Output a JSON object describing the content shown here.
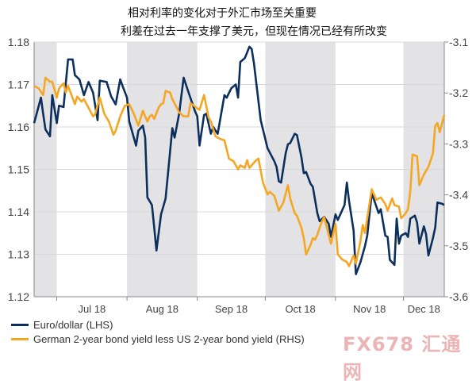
{
  "chart_data": {
    "type": "line",
    "title_lines": [
      "相对利率的变化对于外汇市场至关重要",
      "利差在过去一年支撑了美元，但现在情况已经有所改变"
    ],
    "x_range": [
      "2018-06-21",
      "2018-12-19"
    ],
    "x_ticks": [
      "Jul 18",
      "Aug 18",
      "Sep 18",
      "Oct 18",
      "Nov 18",
      "Dec 18"
    ],
    "shaded_months": [
      "Jun",
      "Aug",
      "Oct",
      "Dec"
    ],
    "y_left": {
      "range": [
        1.12,
        1.18
      ],
      "ticks": [
        "1.12",
        "1.13",
        "1.14",
        "1.15",
        "1.16",
        "1.17",
        "1.18"
      ]
    },
    "y_right": {
      "range": [
        -3.6,
        -3.1
      ],
      "ticks": [
        "-3.6",
        "-3.5",
        "-3.4",
        "-3.3",
        "-3.2",
        "-3.1"
      ]
    },
    "grid": true,
    "legend_position": "bottom-left",
    "series": [
      {
        "name": "Euro/dollar (LHS)",
        "axis": "left",
        "color": "#0d2f5e",
        "points": [
          [
            "2018-06-21",
            1.1609
          ],
          [
            "2018-06-24",
            1.1669
          ],
          [
            "2018-06-25",
            1.1631
          ],
          [
            "2018-06-26",
            1.1594
          ],
          [
            "2018-06-28",
            1.1578
          ],
          [
            "2018-06-29",
            1.1675
          ],
          [
            "2018-07-01",
            1.1609
          ],
          [
            "2018-07-02",
            1.165
          ],
          [
            "2018-07-04",
            1.1647
          ],
          [
            "2018-07-06",
            1.1759
          ],
          [
            "2018-07-08",
            1.1759
          ],
          [
            "2018-07-09",
            1.1722
          ],
          [
            "2018-07-11",
            1.1712
          ],
          [
            "2018-07-13",
            1.1675
          ],
          [
            "2018-07-15",
            1.1706
          ],
          [
            "2018-07-17",
            1.1681
          ],
          [
            "2018-07-19",
            1.1616
          ],
          [
            "2018-07-20",
            1.1709
          ],
          [
            "2018-07-23",
            1.1706
          ],
          [
            "2018-07-25",
            1.1672
          ],
          [
            "2018-07-27",
            1.1653
          ],
          [
            "2018-07-29",
            1.1712
          ],
          [
            "2018-07-30",
            1.1697
          ],
          [
            "2018-08-01",
            1.1669
          ],
          [
            "2018-08-02",
            1.1612
          ],
          [
            "2018-08-03",
            1.1594
          ],
          [
            "2018-08-05",
            1.1556
          ],
          [
            "2018-08-06",
            1.1591
          ],
          [
            "2018-08-08",
            1.1603
          ],
          [
            "2018-08-09",
            1.1575
          ],
          [
            "2018-08-10",
            1.1434
          ],
          [
            "2018-08-12",
            1.1416
          ],
          [
            "2018-08-13",
            1.1363
          ],
          [
            "2018-08-14",
            1.1309
          ],
          [
            "2018-08-16",
            1.1394
          ],
          [
            "2018-08-18",
            1.1431
          ],
          [
            "2018-08-21",
            1.1597
          ],
          [
            "2018-08-22",
            1.1575
          ],
          [
            "2018-08-24",
            1.1631
          ],
          [
            "2018-08-26",
            1.1716
          ],
          [
            "2018-08-28",
            1.1684
          ],
          [
            "2018-08-31",
            1.1637
          ],
          [
            "2018-09-01",
            1.1625
          ],
          [
            "2018-09-02",
            1.1556
          ],
          [
            "2018-09-04",
            1.1628
          ],
          [
            "2018-09-05",
            1.1631
          ],
          [
            "2018-09-07",
            1.1584
          ],
          [
            "2018-09-08",
            1.16
          ],
          [
            "2018-09-10",
            1.1584
          ],
          [
            "2018-09-13",
            1.1675
          ],
          [
            "2018-09-14",
            1.1669
          ],
          [
            "2018-09-16",
            1.1691
          ],
          [
            "2018-09-18",
            1.17
          ],
          [
            "2018-09-19",
            1.1669
          ],
          [
            "2018-09-20",
            1.1753
          ],
          [
            "2018-09-22",
            1.1762
          ],
          [
            "2018-09-24",
            1.1789
          ],
          [
            "2018-09-25",
            1.1784
          ],
          [
            "2018-09-26",
            1.175
          ],
          [
            "2018-09-29",
            1.1616
          ],
          [
            "2018-10-02",
            1.155
          ],
          [
            "2018-10-05",
            1.1519
          ],
          [
            "2018-10-06",
            1.1506
          ],
          [
            "2018-10-07",
            1.1472
          ],
          [
            "2018-10-08",
            1.1469
          ],
          [
            "2018-10-10",
            1.1538
          ],
          [
            "2018-10-11",
            1.1559
          ],
          [
            "2018-10-12",
            1.1562
          ],
          [
            "2018-10-14",
            1.1584
          ],
          [
            "2018-10-15",
            1.1581
          ],
          [
            "2018-10-17",
            1.1528
          ],
          [
            "2018-10-18",
            1.1491
          ],
          [
            "2018-10-19",
            1.1494
          ],
          [
            "2018-10-21",
            1.1466
          ],
          [
            "2018-10-22",
            1.1459
          ],
          [
            "2018-10-24",
            1.1397
          ],
          [
            "2018-10-25",
            1.1378
          ],
          [
            "2018-10-27",
            1.1388
          ],
          [
            "2018-10-29",
            1.1372
          ],
          [
            "2018-10-30",
            1.1341
          ],
          [
            "2018-11-01",
            1.1394
          ],
          [
            "2018-11-02",
            1.1381
          ],
          [
            "2018-11-05",
            1.1416
          ],
          [
            "2018-11-06",
            1.1469
          ],
          [
            "2018-11-07",
            1.1425
          ],
          [
            "2018-11-09",
            1.1356
          ],
          [
            "2018-11-10",
            1.1253
          ],
          [
            "2018-11-12",
            1.1281
          ],
          [
            "2018-11-14",
            1.1319
          ],
          [
            "2018-11-15",
            1.1344
          ],
          [
            "2018-11-17",
            1.1444
          ],
          [
            "2018-11-19",
            1.1413
          ],
          [
            "2018-11-20",
            1.1397
          ],
          [
            "2018-11-21",
            1.1406
          ],
          [
            "2018-11-23",
            1.1344
          ],
          [
            "2018-11-24",
            1.1341
          ],
          [
            "2018-11-25",
            1.1287
          ],
          [
            "2018-11-27",
            1.1275
          ],
          [
            "2018-11-28",
            1.1384
          ],
          [
            "2018-11-29",
            1.1325
          ],
          [
            "2018-11-30",
            1.1344
          ],
          [
            "2018-12-02",
            1.135
          ],
          [
            "2018-12-03",
            1.1341
          ],
          [
            "2018-12-04",
            1.1384
          ],
          [
            "2018-12-06",
            1.1391
          ],
          [
            "2018-12-07",
            1.1375
          ],
          [
            "2018-12-08",
            1.1325
          ],
          [
            "2018-12-10",
            1.1366
          ],
          [
            "2018-12-11",
            1.1347
          ],
          [
            "2018-12-12",
            1.1297
          ],
          [
            "2018-12-14",
            1.1338
          ],
          [
            "2018-12-15",
            1.1363
          ],
          [
            "2018-12-16",
            1.1422
          ],
          [
            "2018-12-18",
            1.1419
          ],
          [
            "2018-12-19",
            1.1416
          ]
        ]
      },
      {
        "name": "German 2-year bond yield less US 2-year bond yield (RHS)",
        "axis": "right",
        "color": "#f5a623",
        "points": [
          [
            "2018-06-21",
            -3.186
          ],
          [
            "2018-06-23",
            -3.191
          ],
          [
            "2018-06-25",
            -3.204
          ],
          [
            "2018-06-26",
            -3.17
          ],
          [
            "2018-06-28",
            -3.178
          ],
          [
            "2018-06-29",
            -3.178
          ],
          [
            "2018-07-01",
            -3.209
          ],
          [
            "2018-07-02",
            -3.191
          ],
          [
            "2018-07-04",
            -3.181
          ],
          [
            "2018-07-05",
            -3.199
          ],
          [
            "2018-07-06",
            -3.186
          ],
          [
            "2018-07-09",
            -3.222
          ],
          [
            "2018-07-10",
            -3.207
          ],
          [
            "2018-07-12",
            -3.217
          ],
          [
            "2018-07-13",
            -3.212
          ],
          [
            "2018-07-17",
            -3.246
          ],
          [
            "2018-07-18",
            -3.241
          ],
          [
            "2018-07-20",
            -3.209
          ],
          [
            "2018-07-22",
            -3.241
          ],
          [
            "2018-07-24",
            -3.256
          ],
          [
            "2018-07-26",
            -3.282
          ],
          [
            "2018-07-27",
            -3.274
          ],
          [
            "2018-07-29",
            -3.246
          ],
          [
            "2018-07-31",
            -3.225
          ],
          [
            "2018-08-02",
            -3.222
          ],
          [
            "2018-08-04",
            -3.241
          ],
          [
            "2018-08-06",
            -3.264
          ],
          [
            "2018-08-08",
            -3.235
          ],
          [
            "2018-08-10",
            -3.256
          ],
          [
            "2018-08-11",
            -3.246
          ],
          [
            "2018-08-12",
            -3.243
          ],
          [
            "2018-08-13",
            -3.251
          ],
          [
            "2018-08-15",
            -3.228
          ],
          [
            "2018-08-16",
            -3.222
          ],
          [
            "2018-08-17",
            -3.22
          ],
          [
            "2018-08-18",
            -3.196
          ],
          [
            "2018-08-20",
            -3.199
          ],
          [
            "2018-08-21",
            -3.212
          ],
          [
            "2018-08-24",
            -3.238
          ],
          [
            "2018-08-26",
            -3.246
          ],
          [
            "2018-08-28",
            -3.246
          ],
          [
            "2018-08-29",
            -3.22
          ],
          [
            "2018-09-01",
            -3.23
          ],
          [
            "2018-09-02",
            -3.233
          ],
          [
            "2018-09-04",
            -3.204
          ],
          [
            "2018-09-06",
            -3.248
          ],
          [
            "2018-09-07",
            -3.256
          ],
          [
            "2018-09-09",
            -3.285
          ],
          [
            "2018-09-11",
            -3.29
          ],
          [
            "2018-09-13",
            -3.293
          ],
          [
            "2018-09-15",
            -3.329
          ],
          [
            "2018-09-17",
            -3.334
          ],
          [
            "2018-09-19",
            -3.35
          ],
          [
            "2018-09-20",
            -3.342
          ],
          [
            "2018-09-22",
            -3.347
          ],
          [
            "2018-09-23",
            -3.332
          ],
          [
            "2018-09-24",
            -3.347
          ],
          [
            "2018-09-27",
            -3.332
          ],
          [
            "2018-09-28",
            -3.329
          ],
          [
            "2018-09-30",
            -3.376
          ],
          [
            "2018-10-02",
            -3.399
          ],
          [
            "2018-10-03",
            -3.394
          ],
          [
            "2018-10-05",
            -3.402
          ],
          [
            "2018-10-07",
            -3.431
          ],
          [
            "2018-10-09",
            -3.415
          ],
          [
            "2018-10-11",
            -3.381
          ],
          [
            "2018-10-12",
            -3.407
          ],
          [
            "2018-10-14",
            -3.436
          ],
          [
            "2018-10-15",
            -3.441
          ],
          [
            "2018-10-17",
            -3.465
          ],
          [
            "2018-10-18",
            -3.485
          ],
          [
            "2018-10-19",
            -3.517
          ],
          [
            "2018-10-21",
            -3.498
          ],
          [
            "2018-10-22",
            -3.485
          ],
          [
            "2018-10-23",
            -3.488
          ],
          [
            "2018-10-24",
            -3.478
          ],
          [
            "2018-10-26",
            -3.452
          ],
          [
            "2018-10-27",
            -3.444
          ],
          [
            "2018-10-28",
            -3.462
          ],
          [
            "2018-10-30",
            -3.496
          ],
          [
            "2018-11-01",
            -3.457
          ],
          [
            "2018-11-02",
            -3.517
          ],
          [
            "2018-11-04",
            -3.527
          ],
          [
            "2018-11-06",
            -3.532
          ],
          [
            "2018-11-07",
            -3.54
          ],
          [
            "2018-11-09",
            -3.519
          ],
          [
            "2018-11-10",
            -3.535
          ],
          [
            "2018-11-12",
            -3.491
          ],
          [
            "2018-11-13",
            -3.459
          ],
          [
            "2018-11-14",
            -3.475
          ],
          [
            "2018-11-17",
            -3.389
          ],
          [
            "2018-11-19",
            -3.41
          ],
          [
            "2018-11-21",
            -3.405
          ],
          [
            "2018-11-23",
            -3.418
          ],
          [
            "2018-11-24",
            -3.431
          ],
          [
            "2018-11-26",
            -3.407
          ],
          [
            "2018-11-27",
            -3.42
          ],
          [
            "2018-11-29",
            -3.423
          ],
          [
            "2018-11-30",
            -3.446
          ],
          [
            "2018-12-02",
            -3.436
          ],
          [
            "2018-12-03",
            -3.428
          ],
          [
            "2018-12-04",
            -3.392
          ],
          [
            "2018-12-05",
            -3.321
          ],
          [
            "2018-12-07",
            -3.324
          ],
          [
            "2018-12-08",
            -3.381
          ],
          [
            "2018-12-10",
            -3.36
          ],
          [
            "2018-12-12",
            -3.345
          ],
          [
            "2018-12-14",
            -3.319
          ],
          [
            "2018-12-15",
            -3.264
          ],
          [
            "2018-12-16",
            -3.259
          ],
          [
            "2018-12-17",
            -3.277
          ],
          [
            "2018-12-19",
            -3.243
          ]
        ]
      }
    ]
  },
  "watermark": "FX678 汇通网"
}
